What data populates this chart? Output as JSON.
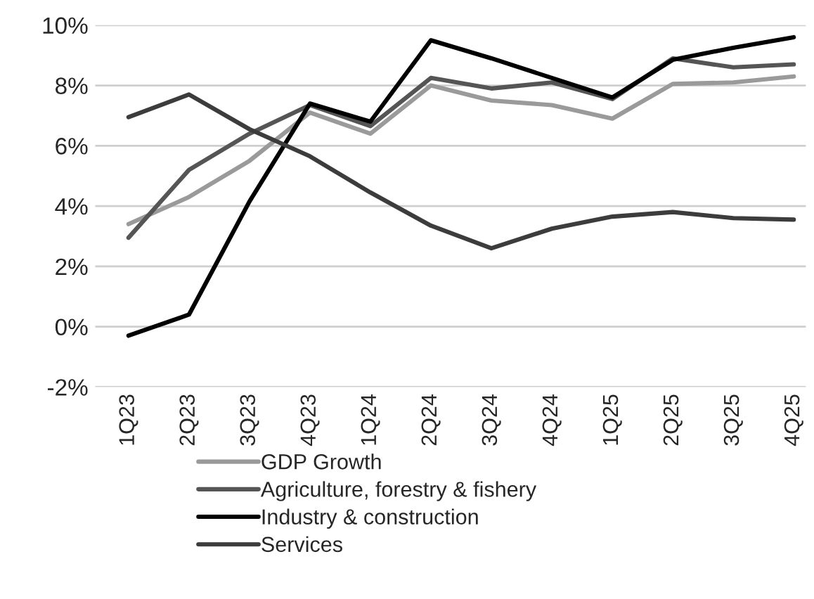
{
  "chart_data": {
    "type": "line",
    "categories": [
      "1Q23",
      "2Q23",
      "3Q23",
      "4Q23",
      "1Q24",
      "2Q24",
      "3Q24",
      "4Q24",
      "1Q25",
      "2Q25",
      "3Q25",
      "4Q25"
    ],
    "series": [
      {
        "name": "GDP Growth",
        "color": "#9a9a9a",
        "values": [
          3.4,
          4.3,
          5.5,
          7.1,
          6.4,
          8.0,
          7.5,
          7.35,
          6.9,
          8.05,
          8.1,
          8.3
        ]
      },
      {
        "name": "Agriculture, forestry & fishery",
        "color": "#555555",
        "values": [
          2.95,
          5.2,
          6.4,
          7.35,
          6.65,
          8.25,
          7.9,
          8.1,
          7.55,
          8.9,
          8.6,
          8.7
        ]
      },
      {
        "name": "Industry & construction",
        "color": "#000000",
        "values": [
          -0.3,
          0.4,
          4.15,
          7.4,
          6.8,
          9.5,
          8.9,
          8.25,
          7.6,
          8.85,
          9.25,
          9.6
        ]
      },
      {
        "name": "Services",
        "color": "#3c3c3c",
        "values": [
          6.95,
          7.7,
          6.55,
          5.65,
          4.45,
          3.35,
          2.6,
          3.25,
          3.65,
          3.8,
          3.6,
          3.55
        ]
      }
    ],
    "ylim": [
      -2,
      10
    ],
    "yticks": [
      {
        "value": -2,
        "label": "-2%"
      },
      {
        "value": 0,
        "label": "0%"
      },
      {
        "value": 2,
        "label": "2%"
      },
      {
        "value": 4,
        "label": "4%"
      },
      {
        "value": 6,
        "label": "6%"
      },
      {
        "value": 8,
        "label": "8%"
      },
      {
        "value": 10,
        "label": "10%"
      }
    ],
    "grid": "y",
    "legend": "bottom",
    "marker": "none",
    "line_style": "solid"
  }
}
